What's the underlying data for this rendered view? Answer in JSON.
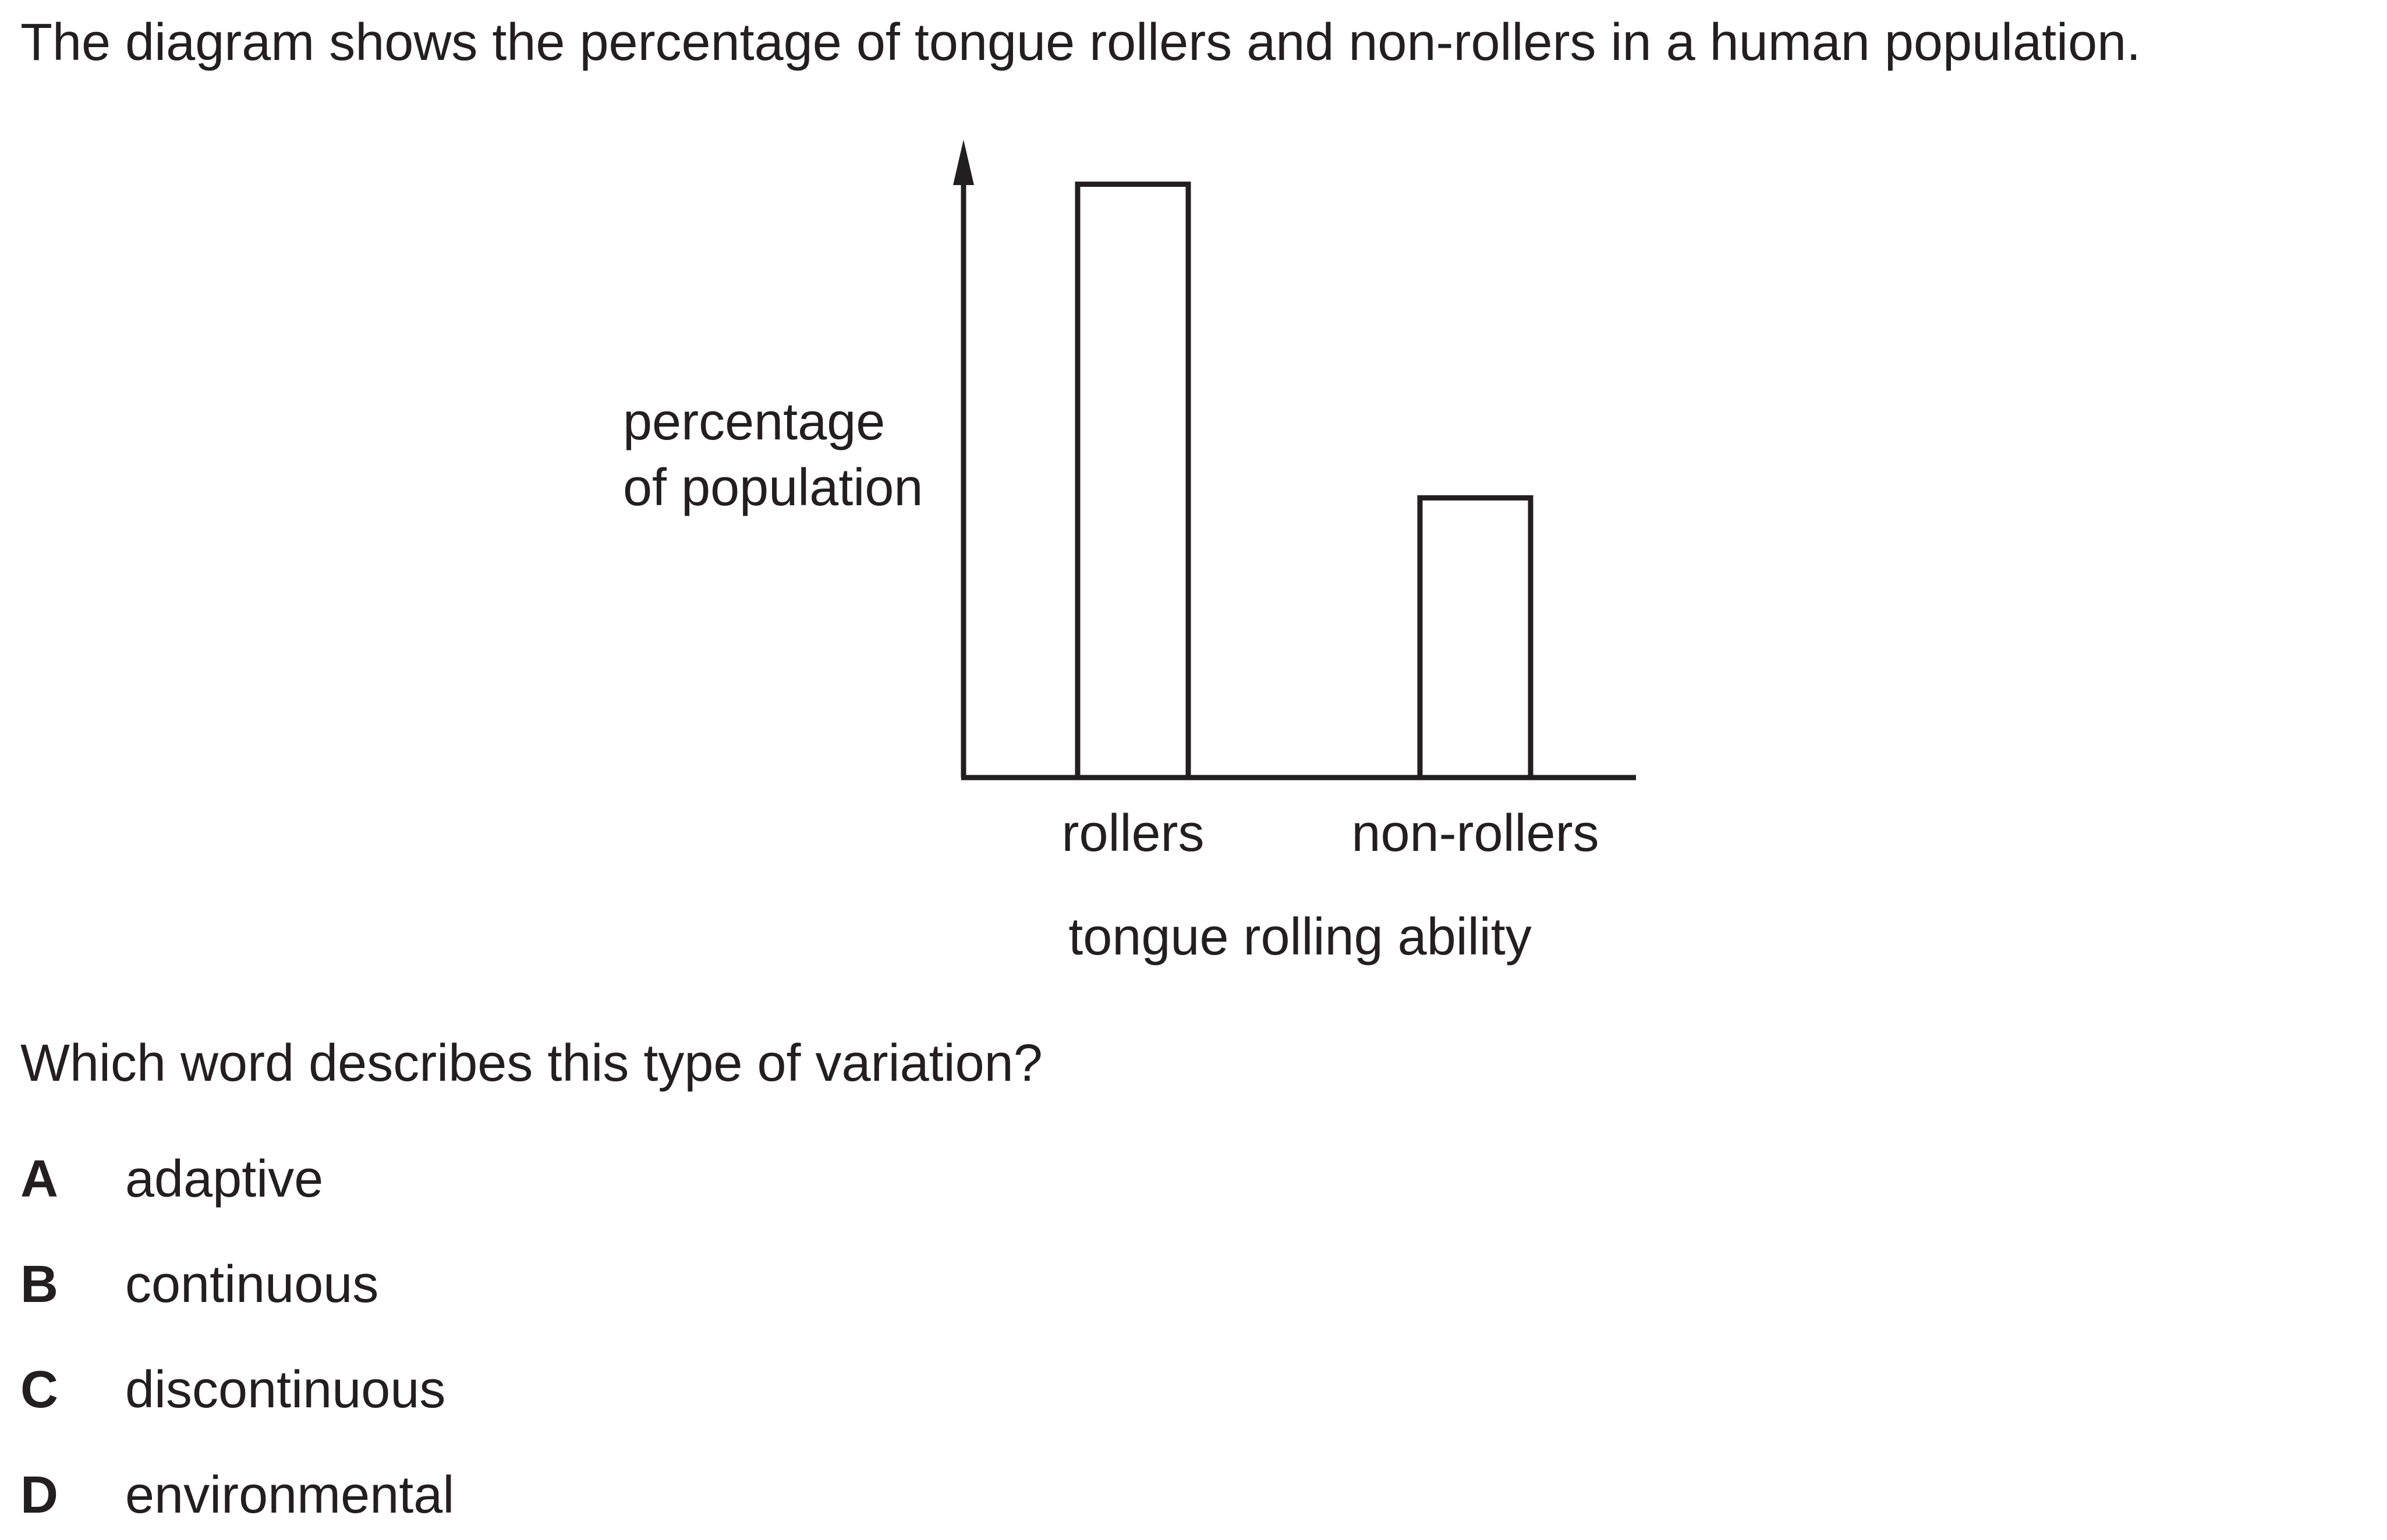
{
  "intro": "The diagram shows the percentage of tongue rollers and non-rollers in a human population.",
  "question": "Which word describes this type of variation?",
  "options": [
    {
      "letter": "A",
      "text": "adaptive"
    },
    {
      "letter": "B",
      "text": "continuous"
    },
    {
      "letter": "C",
      "text": "discontinuous"
    },
    {
      "letter": "D",
      "text": "environmental"
    }
  ],
  "chart_data": {
    "type": "bar",
    "categories": [
      "rollers",
      "non-rollers"
    ],
    "values": [
      70,
      33
    ],
    "ylabel_lines": [
      "percentage",
      "of population"
    ],
    "xlabel": "tongue rolling ability",
    "ylim": [
      0,
      78
    ],
    "grid": false,
    "axis_tick_values_shown": false
  }
}
